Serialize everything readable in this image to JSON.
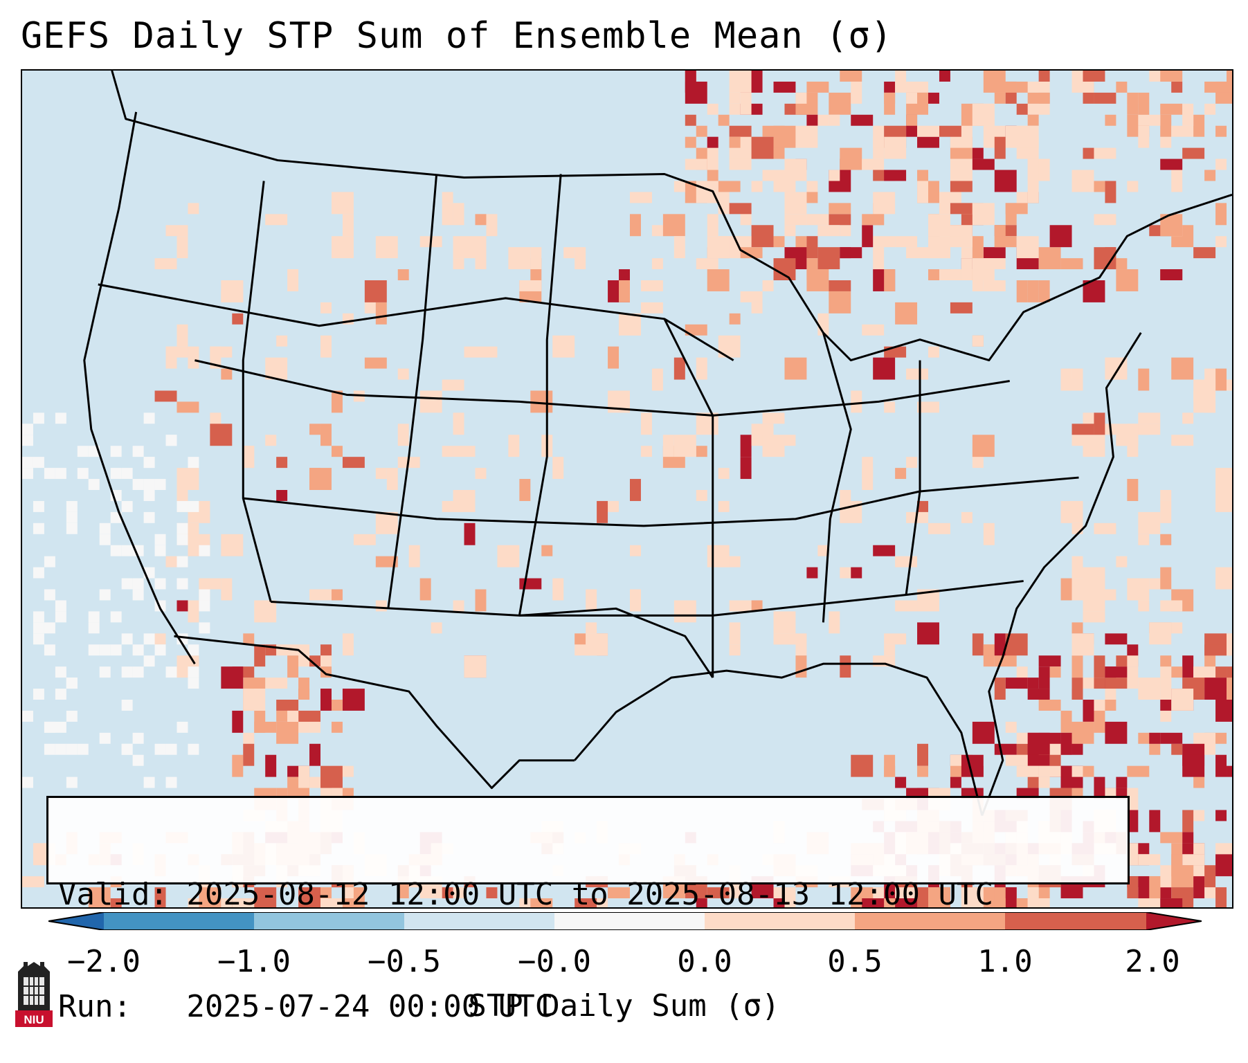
{
  "title": "GEFS Daily STP Sum of Ensemble Mean (σ)",
  "info": {
    "valid_line": "Valid: 2025-08-12 12:00 UTC to 2025-08-13 12:00 UTC",
    "run_line": "Run:   2025-07-24 00:00 UTC"
  },
  "colorbar": {
    "label": "STP Daily Sum (σ)",
    "ticks": [
      "−2.0",
      "−1.0",
      "−0.5",
      "−0.0",
      "0.0",
      "0.5",
      "1.0",
      "2.0"
    ],
    "bins": [
      {
        "range": "< -2.0",
        "color": "#2166ac"
      },
      {
        "range": "-2.0 to -1.0",
        "color": "#4393c3"
      },
      {
        "range": "-1.0 to -0.5",
        "color": "#92c5de"
      },
      {
        "range": "-0.5 to -0.0",
        "color": "#d1e5f0"
      },
      {
        "range": "-0.0 to 0.0",
        "color": "#f7f7f7"
      },
      {
        "range": "0.0 to 0.5",
        "color": "#fddbc7"
      },
      {
        "range": "0.5 to 1.0",
        "color": "#f4a582"
      },
      {
        "range": "1.0 to 2.0",
        "color": "#d6604d"
      },
      {
        "range": "> 2.0",
        "color": "#b2182b"
      }
    ]
  },
  "logo": {
    "text": "NIU",
    "color": "#c8102e"
  }
}
